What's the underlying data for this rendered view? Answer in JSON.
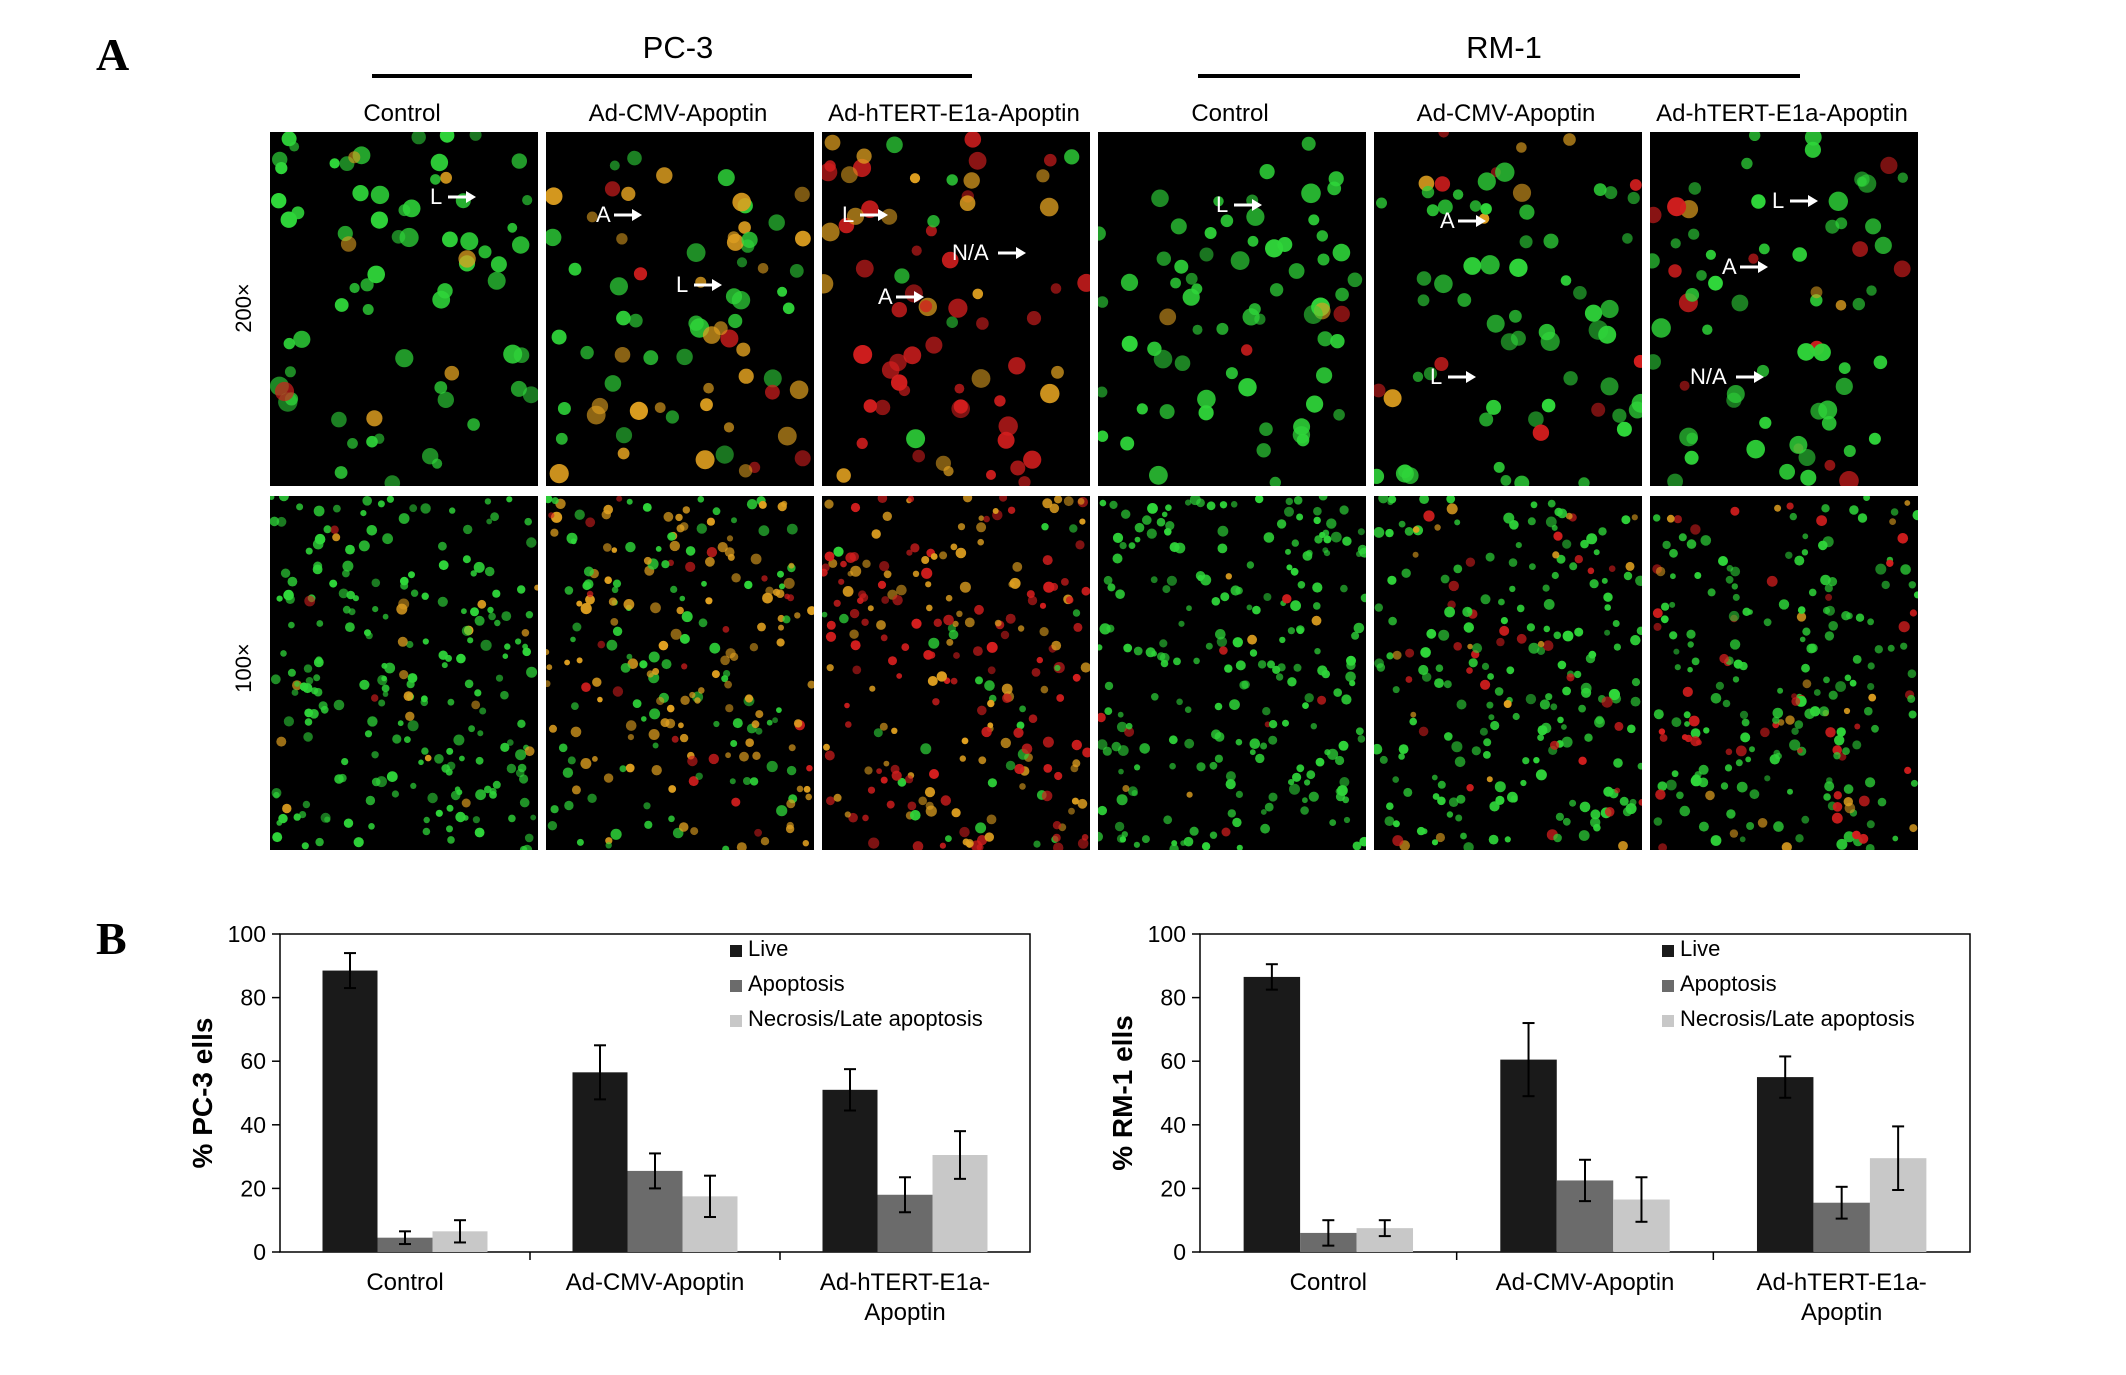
{
  "panel_a": {
    "letter": "A",
    "groups": [
      {
        "title": "PC-3",
        "columns": [
          "Control",
          "Ad-CMV-Apoptin",
          "Ad-hTERT-E1a-Apoptin"
        ]
      },
      {
        "title": "RM-1",
        "columns": [
          "Control",
          "Ad-CMV-Apoptin",
          "Ad-hTERT-E1a-Apoptin"
        ]
      }
    ],
    "magnifications": [
      "200×",
      "100×"
    ],
    "cell_colors": {
      "live": "#2fd63a",
      "apoptotic": "#e0a020",
      "necrotic": "#d41e1e"
    },
    "arrow_labels": {
      "pc3_control_200": [
        "L"
      ],
      "pc3_cmv_200": [
        "A",
        "L"
      ],
      "pc3_htert_200": [
        "L",
        "N/A",
        "A"
      ],
      "rm1_control_200": [
        "L"
      ],
      "rm1_cmv_200": [
        "A",
        "L"
      ],
      "rm1_htert_200": [
        "L",
        "A",
        "N/A"
      ]
    },
    "dominance": {
      "pc3_control": [
        0.92,
        0.06,
        0.02
      ],
      "pc3_cmv": [
        0.45,
        0.45,
        0.1
      ],
      "pc3_htert": [
        0.15,
        0.35,
        0.5
      ],
      "rm1_control": [
        0.95,
        0.03,
        0.02
      ],
      "rm1_cmv": [
        0.82,
        0.06,
        0.12
      ],
      "rm1_htert": [
        0.7,
        0.08,
        0.22
      ]
    }
  },
  "panel_b": {
    "letter": "B"
  },
  "chart_data": [
    {
      "type": "bar",
      "categories": [
        "Control",
        "Ad-CMV-Apoptin",
        "Ad-hTERT-E1a-Apoptin"
      ],
      "series": [
        {
          "name": "Live",
          "values": [
            88.5,
            56.5,
            51
          ],
          "errors": [
            5.5,
            8.5,
            6.5
          ],
          "color": "#1a1a1a"
        },
        {
          "name": "Apoptosis",
          "values": [
            4.5,
            25.5,
            18
          ],
          "errors": [
            2.0,
            5.5,
            5.5
          ],
          "color": "#6b6b6b"
        },
        {
          "name": "Necrosis/Late apoptosis",
          "values": [
            6.5,
            17.5,
            30.5
          ],
          "errors": [
            3.5,
            6.5,
            7.5
          ],
          "color": "#c8c8c8"
        }
      ],
      "ylabel": "% PC-3 ells",
      "ylim": [
        0,
        100
      ],
      "yticks": [
        0,
        20,
        40,
        60,
        80,
        100
      ],
      "legend": "top-right",
      "grid": false
    },
    {
      "type": "bar",
      "categories": [
        "Control",
        "Ad-CMV-Apoptin",
        "Ad-hTERT-E1a-Apoptin"
      ],
      "series": [
        {
          "name": "Live",
          "values": [
            86.5,
            60.5,
            55
          ],
          "errors": [
            4.0,
            11.5,
            6.5
          ],
          "color": "#1a1a1a"
        },
        {
          "name": "Apoptosis",
          "values": [
            6,
            22.5,
            15.5
          ],
          "errors": [
            4.0,
            6.5,
            5.0
          ],
          "color": "#6b6b6b"
        },
        {
          "name": "Necrosis/Late apoptosis",
          "values": [
            7.5,
            16.5,
            29.5
          ],
          "errors": [
            2.5,
            7.0,
            10.0
          ],
          "color": "#c8c8c8"
        }
      ],
      "ylabel": "% RM-1 ells",
      "ylim": [
        0,
        100
      ],
      "yticks": [
        0,
        20,
        40,
        60,
        80,
        100
      ],
      "legend": "top-right",
      "grid": false
    }
  ]
}
